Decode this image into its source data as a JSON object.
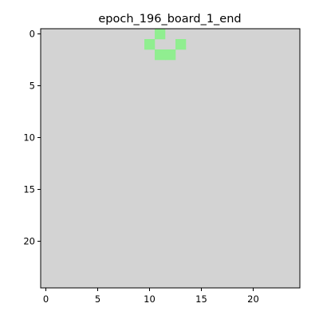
{
  "chart_data": {
    "type": "heatmap",
    "title": "epoch_196_board_1_end",
    "xlabel": "",
    "ylabel": "",
    "grid_size": [
      25,
      25
    ],
    "xlim": [
      -0.5,
      24.5
    ],
    "ylim": [
      24.5,
      -0.5
    ],
    "x_ticks": [
      0,
      5,
      10,
      15,
      20
    ],
    "y_ticks": [
      0,
      5,
      10,
      15,
      20
    ],
    "grid": false,
    "legend": "none",
    "cell_values": {
      "background": 0,
      "active": 1
    },
    "active_cells": [
      {
        "row": 0,
        "col": 11
      },
      {
        "row": 1,
        "col": 10
      },
      {
        "row": 1,
        "col": 13
      },
      {
        "row": 2,
        "col": 11
      },
      {
        "row": 2,
        "col": 12
      }
    ],
    "colors": {
      "background": "#d3d3d3",
      "active": "#90ee90"
    }
  }
}
